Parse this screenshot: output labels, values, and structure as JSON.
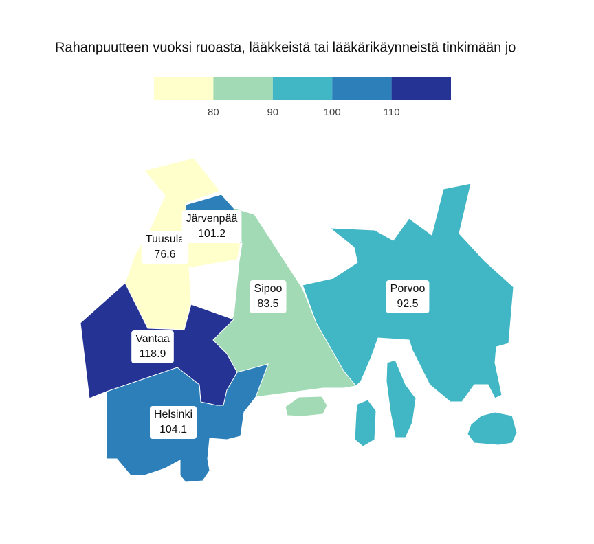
{
  "chart_data": {
    "type": "choropleth",
    "title": "Rahanpuutteen vuoksi ruoasta, lääkkeistä tai lääkärikäynneistä tinkimään jo",
    "colorbar": {
      "lim": [
        70,
        120
      ],
      "ticks": [
        80,
        90,
        100,
        110
      ],
      "colors": [
        "#ffffcc",
        "#a1dab4",
        "#41b6c4",
        "#2c7fb8",
        "#253494"
      ]
    },
    "regions": [
      {
        "name": "Tuusula",
        "value": 76.6
      },
      {
        "name": "Järvenpää",
        "value": 101.2
      },
      {
        "name": "Sipoo",
        "value": 83.5
      },
      {
        "name": "Porvoo",
        "value": 92.5
      },
      {
        "name": "Vantaa",
        "value": 118.9
      },
      {
        "name": "Helsinki",
        "value": 104.1
      }
    ]
  }
}
